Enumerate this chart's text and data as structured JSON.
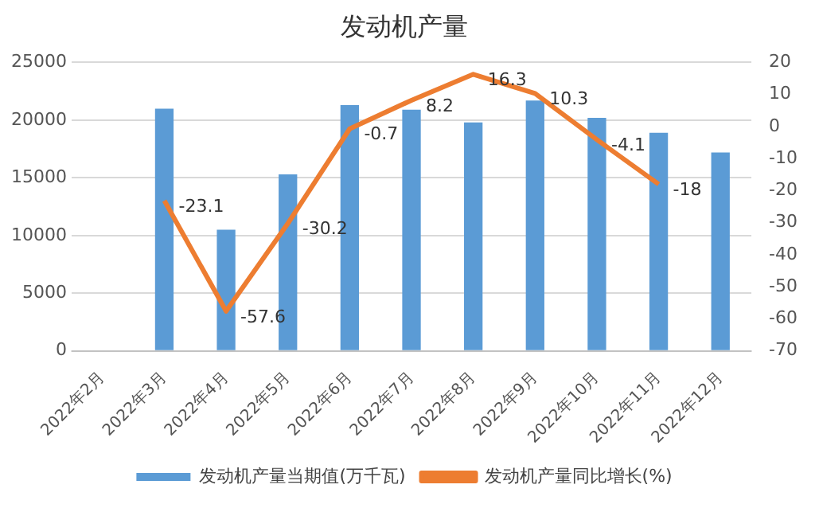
{
  "chart_data": {
    "type": "bar",
    "title": "发动机产量",
    "categories": [
      "2022年2月",
      "2022年3月",
      "2022年4月",
      "2022年5月",
      "2022年6月",
      "2022年7月",
      "2022年8月",
      "2022年9月",
      "2022年10月",
      "2022年11月",
      "2022年12月"
    ],
    "series": [
      {
        "name": "发动机产量当期值(万千瓦)",
        "color": "#5b9bd5",
        "values": [
          null,
          21000,
          10500,
          15300,
          21300,
          20900,
          19800,
          21700,
          20200,
          18900,
          17200
        ]
      },
      {
        "name": "发动机产量同比增长(%)",
        "type": "line",
        "axis": "y2",
        "color": "#ed7d31",
        "marker": "none",
        "values": [
          null,
          -23.1,
          -57.6,
          -30.2,
          -0.7,
          8.2,
          16.3,
          10.3,
          -4.1,
          -18,
          null
        ],
        "value_labels": [
          null,
          "-23.1",
          "-57.6",
          "-30.2",
          "-0.7",
          "8.2",
          "16.3",
          "10.3",
          "-4.1",
          "-18",
          null
        ]
      }
    ],
    "ylim": [
      0,
      25000
    ],
    "yticks": [
      0,
      5000,
      10000,
      15000,
      20000,
      25000
    ],
    "y2lim": [
      -70,
      20
    ],
    "y2ticks": [
      -70,
      -60,
      -50,
      -40,
      -30,
      -20,
      -10,
      0,
      10,
      20
    ],
    "grid": "y",
    "legend": "bottom"
  }
}
